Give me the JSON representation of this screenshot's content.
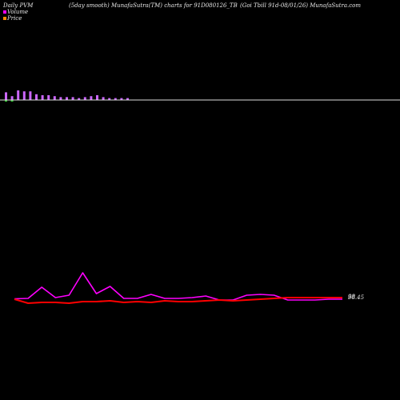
{
  "header": {
    "left": "Daily PVM",
    "center": "(5day smooth) MunafaSutra(TM) charts for 91D080126_TB",
    "right": "(Goi  Tbill 91d-08/01/26) MunafaSutra.com"
  },
  "legend": {
    "volume": "Volume",
    "price": "Price"
  },
  "price_labels": {
    "upper": "98",
    "lower": "98.45"
  },
  "colors": {
    "background": "#000000",
    "volume_line": "#ff00ff",
    "price_line": "#ff0000",
    "volume_bar": "#cc66ff",
    "volume_bar_green": "#33cc33",
    "axis": "#dddddd"
  },
  "chart_data": [
    {
      "type": "bar",
      "name": "volume bars",
      "values": [
        8,
        4,
        10,
        9,
        9,
        6,
        5,
        5,
        4,
        3,
        3,
        3,
        2,
        3,
        4,
        5,
        3,
        2,
        2,
        2,
        2
      ]
    },
    {
      "type": "line",
      "series": [
        {
          "name": "Volume",
          "values": [
            1.5,
            2,
            16,
            3,
            6,
            34,
            8,
            17,
            2,
            2,
            7,
            2,
            2,
            3,
            5,
            0,
            0,
            6,
            7,
            6,
            0,
            0,
            0,
            1,
            1
          ]
        },
        {
          "name": "Price",
          "values": [
            1,
            -4,
            -3,
            -3,
            -4,
            -2,
            -2,
            -1,
            -3,
            -2,
            -3,
            -1,
            -2,
            -2,
            -1,
            0,
            -1,
            0,
            1,
            2,
            3,
            3,
            3,
            3,
            3
          ]
        }
      ]
    }
  ]
}
